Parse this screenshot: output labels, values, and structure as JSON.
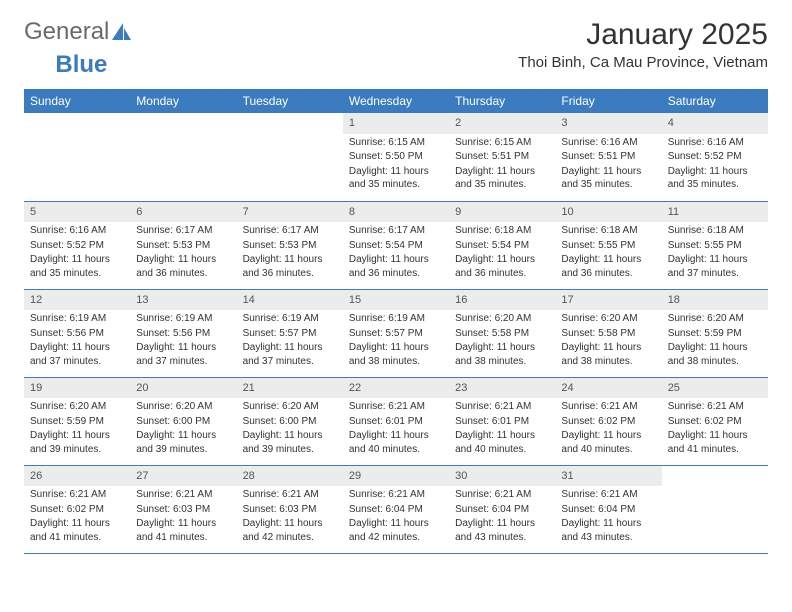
{
  "brand": {
    "part1": "General",
    "part2": "Blue"
  },
  "title": "January 2025",
  "location": "Thoi Binh, Ca Mau Province, Vietnam",
  "colors": {
    "header_bg": "#3b7bbf",
    "daynum_bg": "#ececec",
    "row_border": "#3b7bbf",
    "text": "#333333",
    "logo_gray": "#6a6a6a",
    "logo_blue": "#3b7bbf"
  },
  "day_headers": [
    "Sunday",
    "Monday",
    "Tuesday",
    "Wednesday",
    "Thursday",
    "Friday",
    "Saturday"
  ],
  "weeks": [
    [
      null,
      null,
      null,
      {
        "n": "1",
        "sr": "6:15 AM",
        "ss": "5:50 PM",
        "dl": "11 hours and 35 minutes."
      },
      {
        "n": "2",
        "sr": "6:15 AM",
        "ss": "5:51 PM",
        "dl": "11 hours and 35 minutes."
      },
      {
        "n": "3",
        "sr": "6:16 AM",
        "ss": "5:51 PM",
        "dl": "11 hours and 35 minutes."
      },
      {
        "n": "4",
        "sr": "6:16 AM",
        "ss": "5:52 PM",
        "dl": "11 hours and 35 minutes."
      }
    ],
    [
      {
        "n": "5",
        "sr": "6:16 AM",
        "ss": "5:52 PM",
        "dl": "11 hours and 35 minutes."
      },
      {
        "n": "6",
        "sr": "6:17 AM",
        "ss": "5:53 PM",
        "dl": "11 hours and 36 minutes."
      },
      {
        "n": "7",
        "sr": "6:17 AM",
        "ss": "5:53 PM",
        "dl": "11 hours and 36 minutes."
      },
      {
        "n": "8",
        "sr": "6:17 AM",
        "ss": "5:54 PM",
        "dl": "11 hours and 36 minutes."
      },
      {
        "n": "9",
        "sr": "6:18 AM",
        "ss": "5:54 PM",
        "dl": "11 hours and 36 minutes."
      },
      {
        "n": "10",
        "sr": "6:18 AM",
        "ss": "5:55 PM",
        "dl": "11 hours and 36 minutes."
      },
      {
        "n": "11",
        "sr": "6:18 AM",
        "ss": "5:55 PM",
        "dl": "11 hours and 37 minutes."
      }
    ],
    [
      {
        "n": "12",
        "sr": "6:19 AM",
        "ss": "5:56 PM",
        "dl": "11 hours and 37 minutes."
      },
      {
        "n": "13",
        "sr": "6:19 AM",
        "ss": "5:56 PM",
        "dl": "11 hours and 37 minutes."
      },
      {
        "n": "14",
        "sr": "6:19 AM",
        "ss": "5:57 PM",
        "dl": "11 hours and 37 minutes."
      },
      {
        "n": "15",
        "sr": "6:19 AM",
        "ss": "5:57 PM",
        "dl": "11 hours and 38 minutes."
      },
      {
        "n": "16",
        "sr": "6:20 AM",
        "ss": "5:58 PM",
        "dl": "11 hours and 38 minutes."
      },
      {
        "n": "17",
        "sr": "6:20 AM",
        "ss": "5:58 PM",
        "dl": "11 hours and 38 minutes."
      },
      {
        "n": "18",
        "sr": "6:20 AM",
        "ss": "5:59 PM",
        "dl": "11 hours and 38 minutes."
      }
    ],
    [
      {
        "n": "19",
        "sr": "6:20 AM",
        "ss": "5:59 PM",
        "dl": "11 hours and 39 minutes."
      },
      {
        "n": "20",
        "sr": "6:20 AM",
        "ss": "6:00 PM",
        "dl": "11 hours and 39 minutes."
      },
      {
        "n": "21",
        "sr": "6:20 AM",
        "ss": "6:00 PM",
        "dl": "11 hours and 39 minutes."
      },
      {
        "n": "22",
        "sr": "6:21 AM",
        "ss": "6:01 PM",
        "dl": "11 hours and 40 minutes."
      },
      {
        "n": "23",
        "sr": "6:21 AM",
        "ss": "6:01 PM",
        "dl": "11 hours and 40 minutes."
      },
      {
        "n": "24",
        "sr": "6:21 AM",
        "ss": "6:02 PM",
        "dl": "11 hours and 40 minutes."
      },
      {
        "n": "25",
        "sr": "6:21 AM",
        "ss": "6:02 PM",
        "dl": "11 hours and 41 minutes."
      }
    ],
    [
      {
        "n": "26",
        "sr": "6:21 AM",
        "ss": "6:02 PM",
        "dl": "11 hours and 41 minutes."
      },
      {
        "n": "27",
        "sr": "6:21 AM",
        "ss": "6:03 PM",
        "dl": "11 hours and 41 minutes."
      },
      {
        "n": "28",
        "sr": "6:21 AM",
        "ss": "6:03 PM",
        "dl": "11 hours and 42 minutes."
      },
      {
        "n": "29",
        "sr": "6:21 AM",
        "ss": "6:04 PM",
        "dl": "11 hours and 42 minutes."
      },
      {
        "n": "30",
        "sr": "6:21 AM",
        "ss": "6:04 PM",
        "dl": "11 hours and 43 minutes."
      },
      {
        "n": "31",
        "sr": "6:21 AM",
        "ss": "6:04 PM",
        "dl": "11 hours and 43 minutes."
      },
      null
    ]
  ],
  "labels": {
    "sunrise": "Sunrise:",
    "sunset": "Sunset:",
    "daylight": "Daylight:"
  }
}
